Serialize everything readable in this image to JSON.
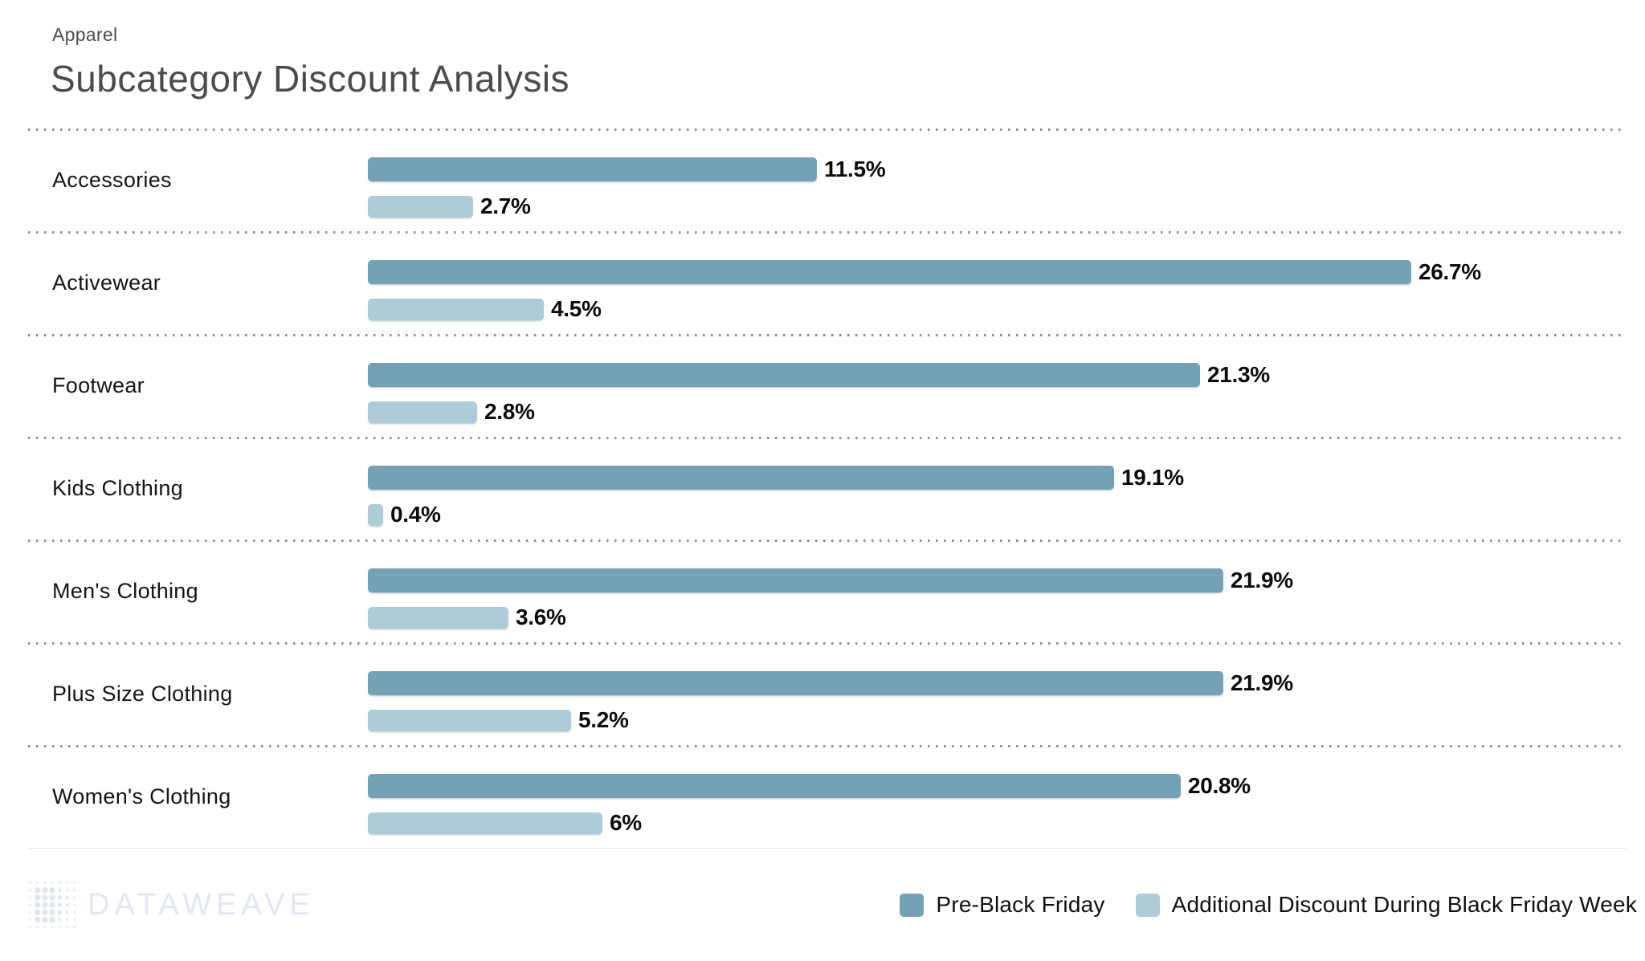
{
  "header": {
    "category_label": "Apparel",
    "title": "Subcategory Discount Analysis"
  },
  "chart_data": {
    "type": "bar",
    "orientation": "horizontal",
    "value_unit": "%",
    "title": "Subcategory Discount Analysis",
    "categories": [
      "Accessories",
      "Activewear",
      "Footwear",
      "Kids Clothing",
      "Men's Clothing",
      "Plus Size Clothing",
      "Women's Clothing"
    ],
    "series": [
      {
        "name": "Pre-Black Friday",
        "color": "#74a1b5",
        "values": [
          11.5,
          26.7,
          21.3,
          19.1,
          21.9,
          21.9,
          20.8
        ],
        "labels": [
          "11.5%",
          "26.7%",
          "21.3%",
          "19.1%",
          "21.9%",
          "21.9%",
          "20.8%"
        ]
      },
      {
        "name": "Additional Discount During Black Friday Week",
        "color": "#aecbd8",
        "values": [
          2.7,
          4.5,
          2.8,
          0.4,
          3.6,
          5.2,
          6
        ],
        "labels": [
          "2.7%",
          "4.5%",
          "2.8%",
          "0.4%",
          "3.6%",
          "5.2%",
          "6%"
        ]
      }
    ],
    "xlim": [
      0,
      32.7
    ],
    "grid": "dotted horizontal row separators",
    "legend_position": "bottom-right"
  },
  "legend": {
    "items": [
      {
        "label": "Pre-Black Friday",
        "color": "#74a1b5"
      },
      {
        "label": "Additional Discount During Black Friday Week",
        "color": "#aecbd8"
      }
    ]
  },
  "footer": {
    "brand": "DATAWEAVE"
  }
}
